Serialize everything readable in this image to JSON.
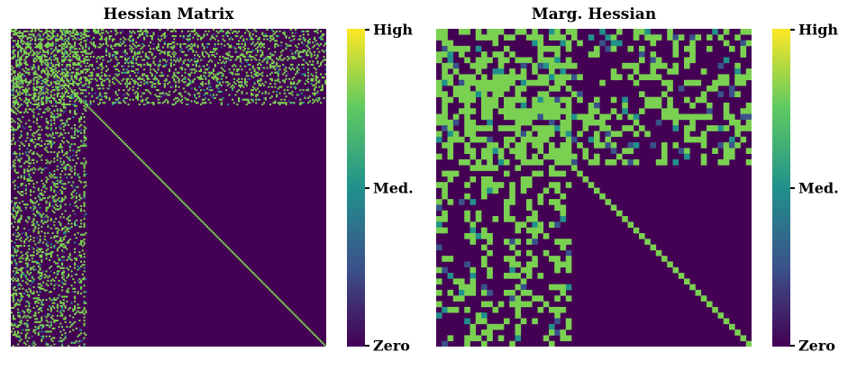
{
  "chart_data": [
    {
      "type": "heatmap",
      "title": "Hessian Matrix",
      "colormap": "viridis",
      "colorbar": {
        "ticks": [
          "Zero",
          "Med.",
          "High"
        ]
      },
      "matrix_size": 200,
      "block_rows": 48,
      "dense_value": "high",
      "background_value": "zero",
      "structure": "sparse block pattern in first ~48 rows/columns, bright diagonal across the remaining variables",
      "colors": {
        "zero": "#440154",
        "med": "#21918c",
        "high": "#7ad151",
        "peak": "#fde725"
      }
    },
    {
      "type": "heatmap",
      "title": "Marg. Hessian",
      "colormap": "viridis",
      "colorbar": {
        "ticks": [
          "Zero",
          "Med.",
          "High"
        ]
      },
      "matrix_size": 56,
      "block_rows": 24,
      "dense_value": "high",
      "background_value": "zero",
      "structure": "dense block pattern in first ~24 rows/columns, bright diagonal across the remaining variables",
      "colors": {
        "zero": "#440154",
        "med": "#21918c",
        "high": "#7ad151",
        "peak": "#fde725"
      }
    }
  ]
}
